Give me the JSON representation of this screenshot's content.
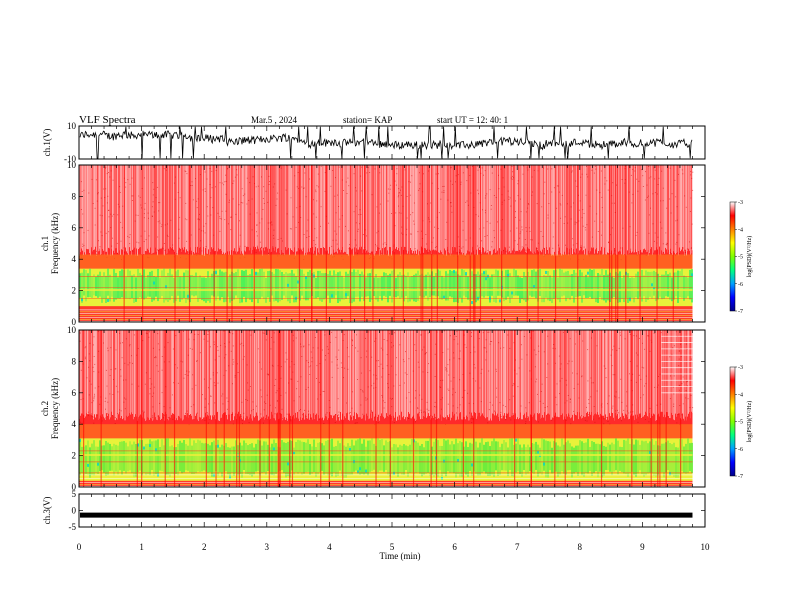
{
  "header": {
    "title": "VLF Spectra",
    "date": "Mar.5  , 2024",
    "station": "station= KAP",
    "start_ut": "start  UT  =   12: 40: 1"
  },
  "colors": {
    "spectrogram_background": "#ff3333",
    "low_power_band": "#7cff3a",
    "colormap": [
      "#00008a",
      "#0000ff",
      "#00a0ff",
      "#00ff80",
      "#80ff00",
      "#ffff00",
      "#ff8000",
      "#ff0000",
      "#ffffff"
    ]
  },
  "chart_data": [
    {
      "type": "line",
      "panel": "ch1-waveform",
      "ylabel": "ch.1(V)",
      "ylim": [
        -10,
        10
      ],
      "ytick_labels": [
        "10",
        "-10"
      ],
      "xlim": [
        0,
        10
      ],
      "description_values": {
        "typical_range": [
          -6,
          8
        ]
      },
      "data_end_min": 9.8
    },
    {
      "type": "heatmap",
      "panel": "ch1-spectrogram",
      "ylabel": "ch.1\nFrequency  (kHz)",
      "ylim": [
        0,
        10
      ],
      "ytick_labels": [
        "0",
        "2",
        "4",
        "6",
        "8",
        "10"
      ],
      "xlim": [
        0,
        10
      ],
      "data_end_min": 9.8,
      "green_band_khz": [
        1.2,
        3.4
      ],
      "colorbar": {
        "label": "log(PSD)(V²/Hz)",
        "range": [
          -7,
          -3
        ],
        "tick_labels": [
          "-3",
          "-4",
          "-5",
          "-6",
          "-7"
        ]
      }
    },
    {
      "type": "heatmap",
      "panel": "ch2-spectrogram",
      "ylabel": "ch.2\nFrequency  (kHz)",
      "ylim": [
        0,
        10
      ],
      "ytick_labels": [
        "0",
        "2",
        "4",
        "6",
        "8",
        "10"
      ],
      "xlim": [
        0,
        10
      ],
      "data_end_min": 9.8,
      "green_band_khz": [
        0.6,
        3.1
      ],
      "colorbar": {
        "label": "log(PSD)(V²/Hz)",
        "range": [
          -7,
          -3
        ],
        "tick_labels": [
          "-3",
          "-4",
          "-5",
          "-6",
          "-7"
        ]
      }
    },
    {
      "type": "line",
      "panel": "ch3-waveform",
      "ylabel": "ch.3(V)",
      "ylim": [
        -5,
        5
      ],
      "ytick_labels": [
        "5",
        "0",
        "-5"
      ],
      "xlim": [
        0,
        10
      ],
      "xlabel": "Time  (min)",
      "xtick_labels": [
        "0",
        "1",
        "2",
        "3",
        "4",
        "5",
        "6",
        "7",
        "8",
        "9",
        "10"
      ],
      "description_values": {
        "level": -1.4
      },
      "data_end_min": 9.8
    }
  ]
}
